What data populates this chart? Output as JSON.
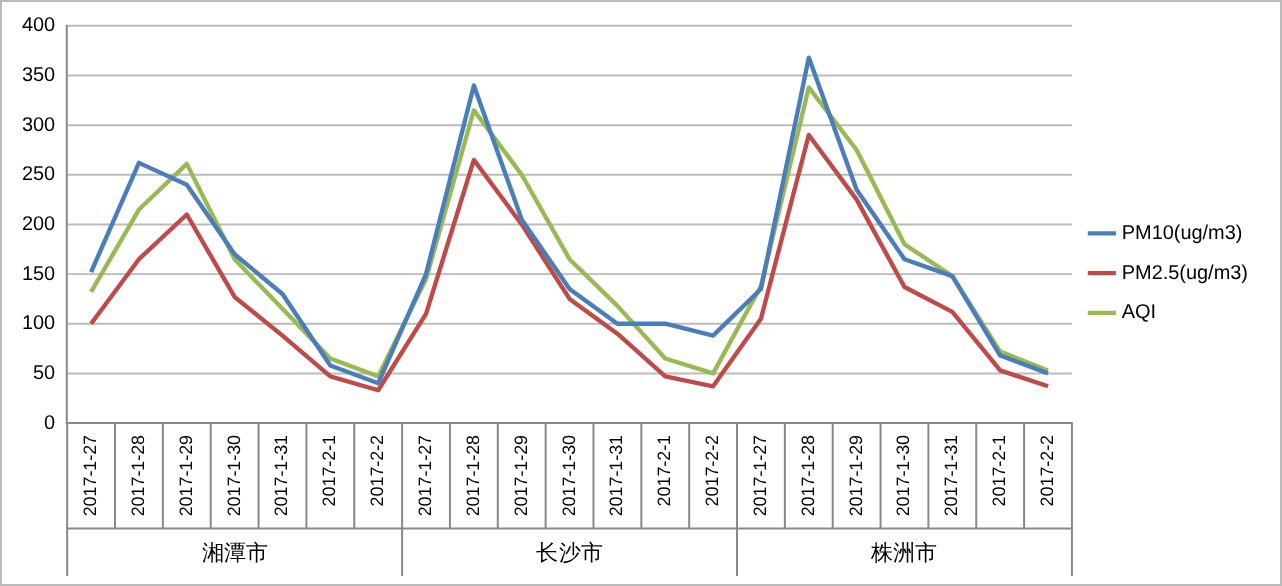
{
  "chart_data": {
    "type": "line",
    "categories": [
      "2017-1-27",
      "2017-1-28",
      "2017-1-29",
      "2017-1-30",
      "2017-1-31",
      "2017-2-1",
      "2017-2-2",
      "2017-1-27",
      "2017-1-28",
      "2017-1-29",
      "2017-1-30",
      "2017-1-31",
      "2017-2-1",
      "2017-2-2",
      "2017-1-27",
      "2017-1-28",
      "2017-1-29",
      "2017-1-30",
      "2017-1-31",
      "2017-2-1",
      "2017-2-2"
    ],
    "series": [
      {
        "name": "PM10(ug/m3)",
        "color": "#4a7ebb",
        "values": [
          152,
          262,
          240,
          170,
          130,
          58,
          40,
          150,
          340,
          205,
          135,
          100,
          100,
          88,
          135,
          368,
          235,
          165,
          148,
          68,
          50
        ]
      },
      {
        "name": "PM2.5(ug/m3)",
        "color": "#be4b48",
        "values": [
          100,
          165,
          210,
          127,
          88,
          47,
          33,
          110,
          265,
          200,
          125,
          90,
          47,
          37,
          105,
          290,
          225,
          137,
          112,
          53,
          37
        ]
      },
      {
        "name": "AQI",
        "color": "#98b954",
        "values": [
          132,
          215,
          261,
          165,
          115,
          65,
          47,
          145,
          315,
          250,
          165,
          118,
          65,
          50,
          138,
          338,
          275,
          180,
          148,
          72,
          53
        ]
      }
    ],
    "annotations": [
      "湘潭市",
      "长沙市",
      "株洲市"
    ],
    "ylim": [
      0,
      400
    ],
    "yticks": [
      0,
      50,
      100,
      150,
      200,
      250,
      300,
      350,
      400
    ],
    "grid": "y",
    "legend": "right",
    "marker": "none",
    "line_style": "solid"
  }
}
